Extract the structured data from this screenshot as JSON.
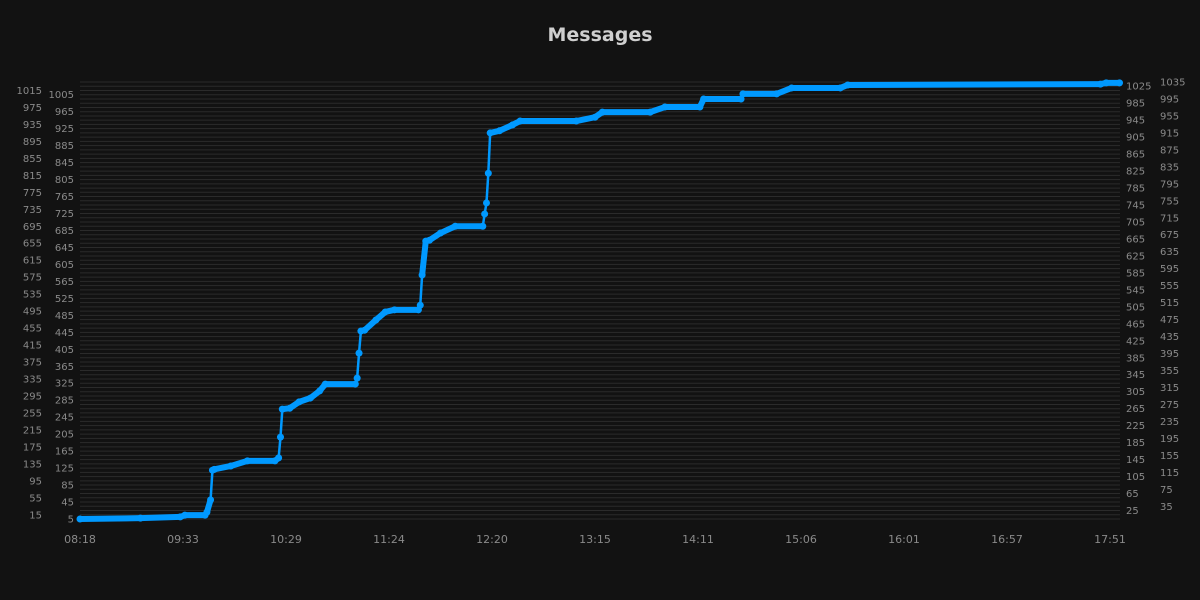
{
  "chart_data": {
    "type": "line",
    "title": "Messages",
    "xlabel": "",
    "ylabel": "",
    "ylim": [
      5,
      1035
    ],
    "grid": true,
    "line_color": "#0099ff",
    "xticks": [
      "08:18",
      "09:33",
      "10:29",
      "11:24",
      "12:20",
      "13:15",
      "14:11",
      "15:06",
      "16:01",
      "16:57",
      "17:51"
    ],
    "yticks": [
      5,
      15,
      25,
      35,
      45,
      55,
      65,
      75,
      85,
      95,
      105,
      115,
      125,
      135,
      145,
      155,
      165,
      175,
      185,
      195,
      205,
      215,
      225,
      235,
      245,
      255,
      265,
      275,
      285,
      295,
      305,
      315,
      325,
      335,
      345,
      355,
      365,
      375,
      385,
      395,
      405,
      415,
      425,
      435,
      445,
      455,
      465,
      475,
      485,
      495,
      505,
      515,
      525,
      535,
      545,
      555,
      565,
      575,
      585,
      595,
      605,
      615,
      625,
      635,
      645,
      655,
      665,
      675,
      685,
      695,
      705,
      715,
      725,
      735,
      745,
      755,
      765,
      775,
      785,
      795,
      805,
      815,
      825,
      835,
      845,
      855,
      865,
      875,
      885,
      895,
      905,
      915,
      925,
      935,
      945,
      955,
      965,
      975,
      985,
      995,
      1005,
      1015,
      1025,
      1035
    ],
    "series": [
      {
        "x": [
          "08:18",
          "09:02",
          "09:31",
          "09:34",
          "09:45",
          "09:46",
          "09:48",
          "09:49",
          "09:50",
          "09:59",
          "10:08",
          "10:23",
          "10:25",
          "10:26",
          "10:27",
          "10:31",
          "10:36",
          "10:42",
          "10:47",
          "10:50",
          "11:06",
          "11:07",
          "11:08",
          "11:09",
          "11:11",
          "11:17",
          "11:22",
          "11:27",
          "11:40",
          "11:41",
          "11:42",
          "11:44",
          "11:46",
          "11:52",
          "12:00",
          "12:15",
          "12:16",
          "12:17",
          "12:18",
          "12:19",
          "12:24",
          "12:31",
          "12:35",
          "13:05",
          "13:15",
          "13:19",
          "13:45",
          "13:53",
          "14:12",
          "14:14",
          "14:34",
          "14:35",
          "14:53",
          "15:01",
          "15:27",
          "15:31",
          "17:46",
          "17:49",
          "17:56"
        ],
        "y": [
          5,
          7,
          10,
          14,
          14,
          21,
          50,
          120,
          122,
          130,
          142,
          142,
          149,
          198,
          264,
          266,
          281,
          290,
          307,
          323,
          323,
          337,
          396,
          448,
          450,
          474,
          493,
          498,
          498,
          509,
          580,
          660,
          662,
          679,
          695,
          695,
          724,
          750,
          820,
          915,
          920,
          934,
          943,
          943,
          952,
          964,
          964,
          976,
          976,
          995,
          995,
          1007,
          1007,
          1021,
          1021,
          1028,
          1030,
          1033,
          1033
        ]
      }
    ]
  }
}
